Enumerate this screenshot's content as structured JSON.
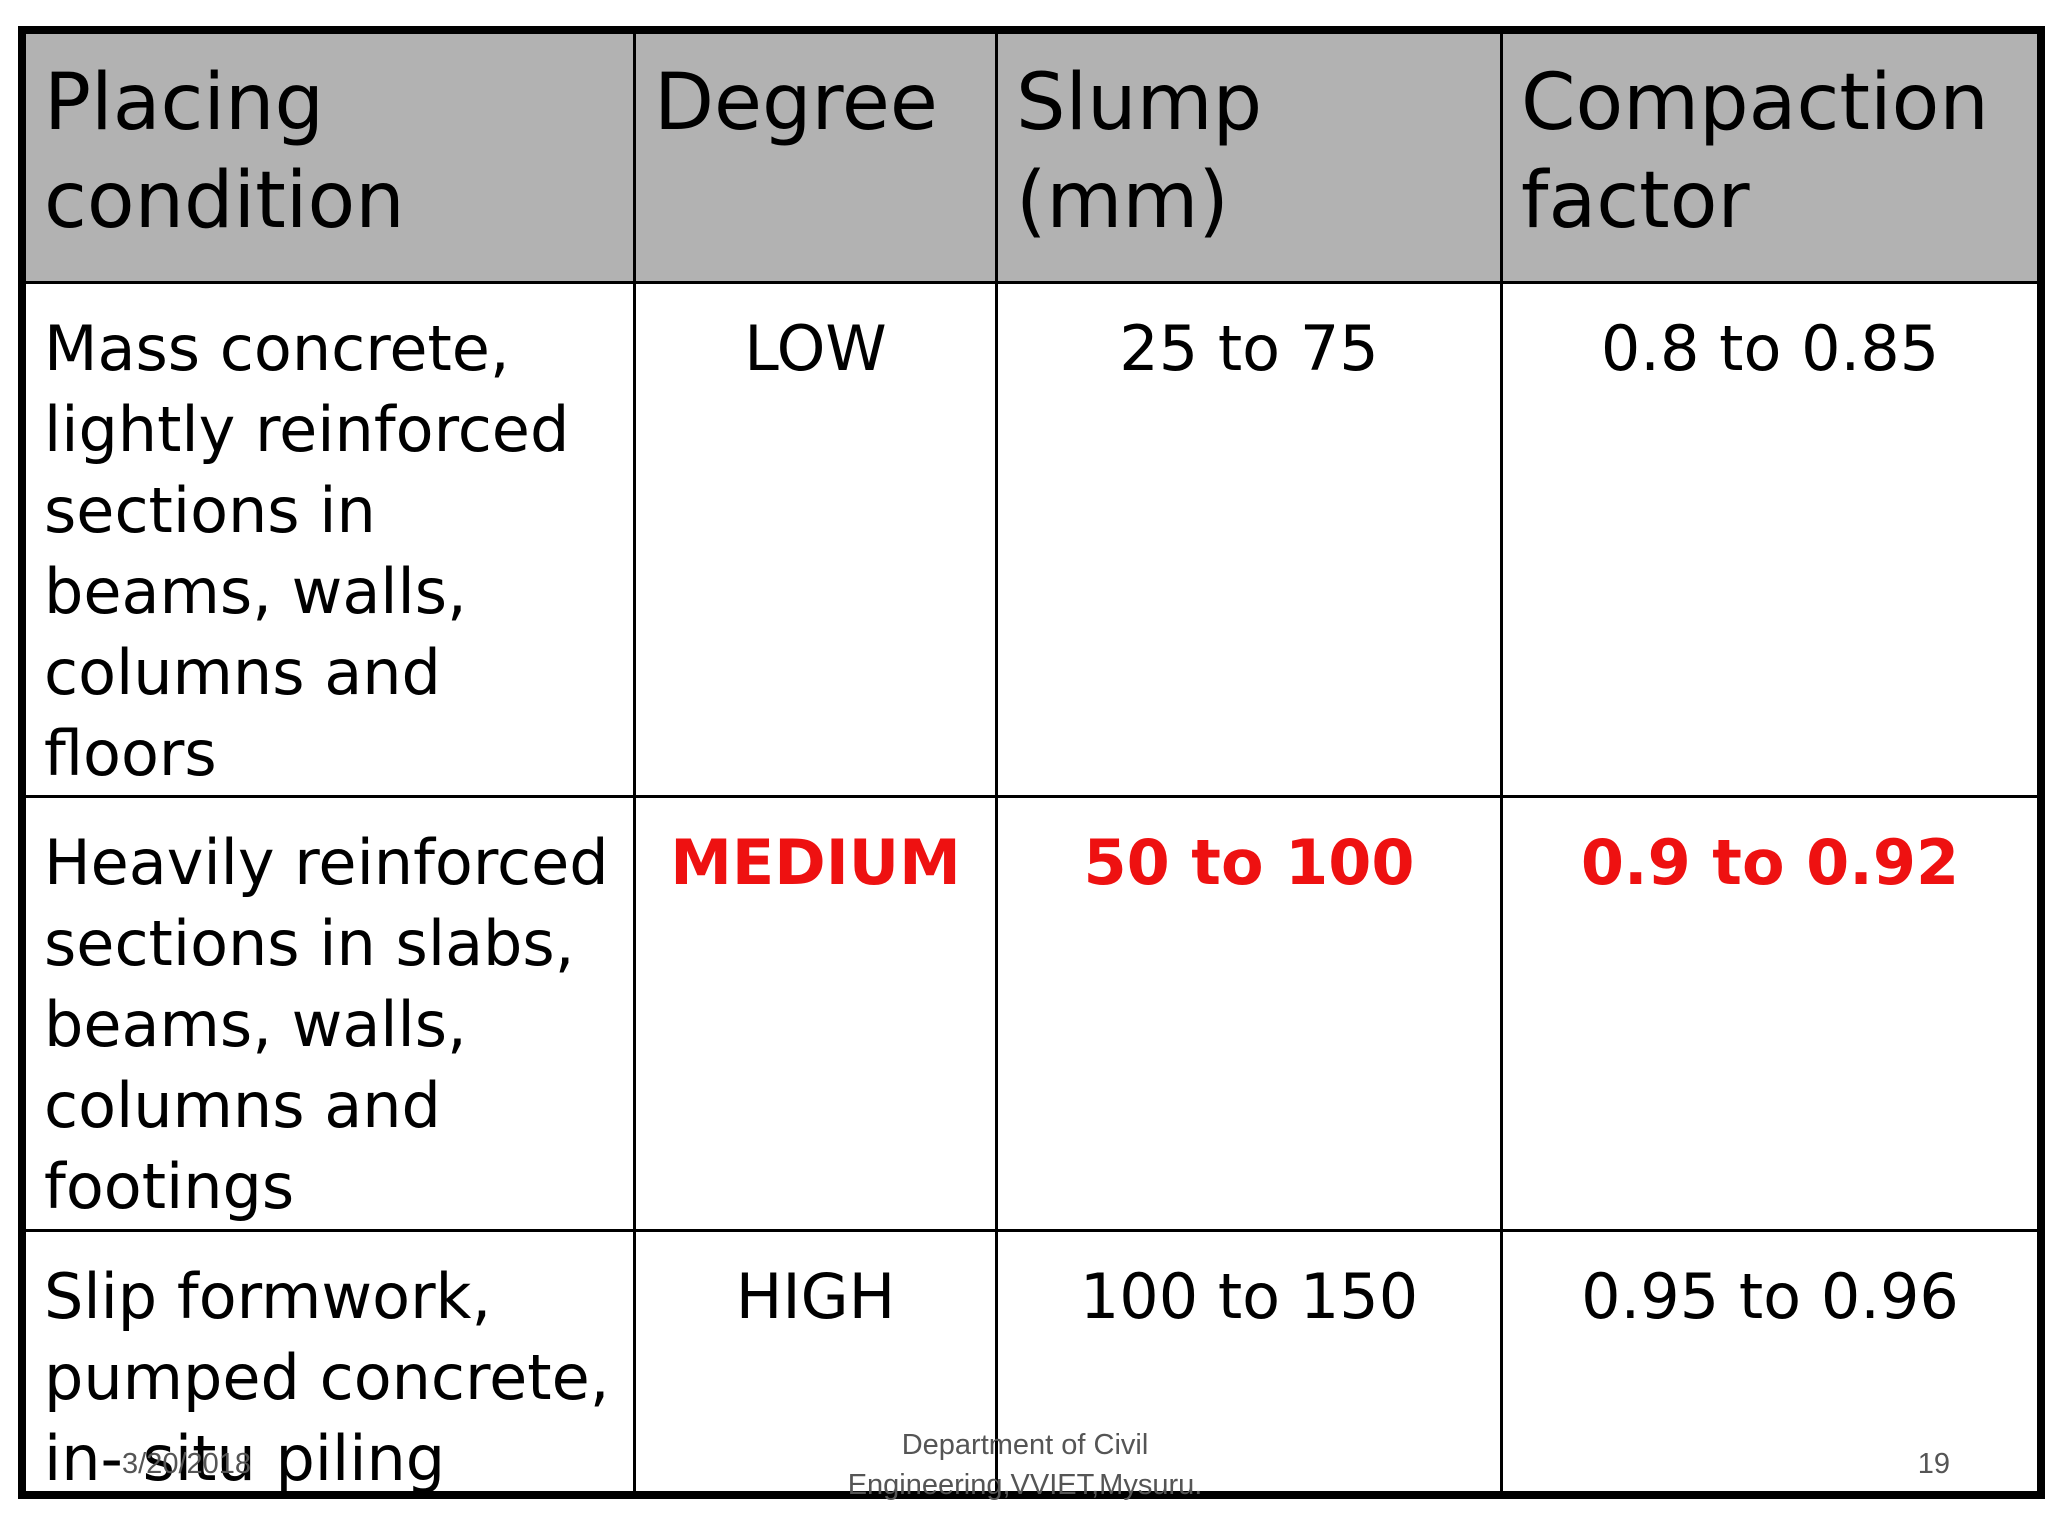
{
  "table": {
    "headers": {
      "placing_condition": [
        "Placing",
        "condition"
      ],
      "degree": "Degree",
      "slump": [
        "Slump",
        "(mm)"
      ],
      "compaction_factor": [
        "Compaction",
        "factor"
      ]
    },
    "rows": [
      {
        "placing_condition": [
          "Mass concrete,",
          "lightly reinforced",
          "sections in",
          "beams, walls,",
          "columns and",
          "floors"
        ],
        "degree": "LOW",
        "slump": "25 to 75",
        "compaction_factor": "0.8 to 0.85",
        "highlighted": false
      },
      {
        "placing_condition": [
          "Heavily reinforced",
          "sections in slabs,",
          "beams, walls,",
          "columns and",
          "footings"
        ],
        "degree": "MEDIUM",
        "slump": "50 to 100",
        "compaction_factor": "0.9 to 0.92",
        "highlighted": true
      },
      {
        "placing_condition": [
          "Slip formwork,",
          "pumped concrete,",
          "in- situ piling"
        ],
        "degree": "HIGH",
        "slump": "100 to 150",
        "compaction_factor": "0.95 to 0.96",
        "highlighted": false
      }
    ]
  },
  "footer": {
    "date": "3/20/2018",
    "department": [
      "Department of Civil",
      "Engineering,VVIET,Mysuru."
    ],
    "page_number": "19"
  },
  "colors": {
    "header_bg": "#b2b2b2",
    "highlight": "#ee1111",
    "border": "#000000"
  }
}
